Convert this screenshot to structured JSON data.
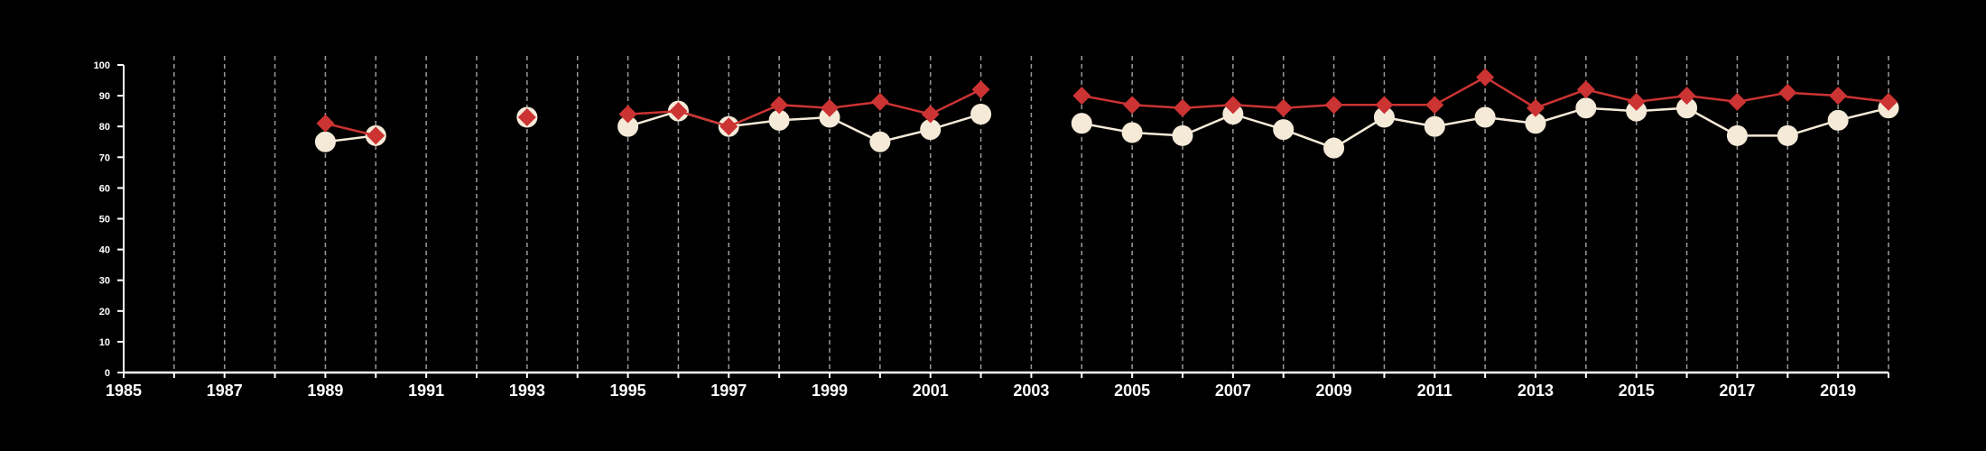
{
  "colors": {
    "background": "#000000",
    "axis": "#ffffff",
    "grid": "#9a9a9a",
    "series_white": "#f5ead8",
    "series_red": "#cc3333"
  },
  "chart_data": {
    "type": "line",
    "title": "",
    "xlabel": "",
    "ylabel": "",
    "xlim": [
      1985,
      2020
    ],
    "ylim": [
      0,
      100
    ],
    "grid": "vertical dashed at each year",
    "legend": "none",
    "x_ticks": [
      "1985",
      "1987",
      "1989",
      "1991",
      "1993",
      "1995",
      "1997",
      "1999",
      "2001",
      "2003",
      "2005",
      "2007",
      "2009",
      "2011",
      "2013",
      "2015",
      "2017",
      "2019"
    ],
    "y_ticks": [
      "0",
      "10",
      "20",
      "30",
      "40",
      "50",
      "60",
      "70",
      "80",
      "90",
      "100"
    ],
    "series": [
      {
        "marker": "circle",
        "color": "#f5ead8",
        "points": [
          [
            1989,
            75
          ],
          [
            1990,
            77
          ],
          null,
          [
            1993,
            83
          ],
          null,
          [
            1995,
            80
          ],
          [
            1996,
            85
          ],
          [
            1997,
            80
          ],
          [
            1998,
            82
          ],
          [
            1999,
            83
          ],
          [
            2000,
            75
          ],
          [
            2001,
            79
          ],
          [
            2002,
            84
          ],
          null,
          [
            2004,
            81
          ],
          [
            2005,
            78
          ],
          [
            2006,
            77
          ],
          [
            2007,
            84
          ],
          [
            2008,
            79
          ],
          [
            2009,
            73
          ],
          [
            2010,
            83
          ],
          [
            2011,
            80
          ],
          [
            2012,
            83
          ],
          [
            2013,
            81
          ],
          [
            2014,
            86
          ],
          [
            2015,
            85
          ],
          [
            2016,
            86
          ],
          [
            2017,
            77
          ],
          [
            2018,
            77
          ],
          [
            2019,
            82
          ],
          [
            2020,
            86
          ]
        ]
      },
      {
        "marker": "diamond",
        "color": "#cc3333",
        "points": [
          [
            1989,
            81
          ],
          [
            1990,
            77
          ],
          null,
          [
            1993,
            83
          ],
          null,
          [
            1995,
            84
          ],
          [
            1996,
            85
          ],
          [
            1997,
            80
          ],
          [
            1998,
            87
          ],
          [
            1999,
            86
          ],
          [
            2000,
            88
          ],
          [
            2001,
            84
          ],
          [
            2002,
            92
          ],
          null,
          [
            2004,
            90
          ],
          [
            2005,
            87
          ],
          [
            2006,
            86
          ],
          [
            2007,
            87
          ],
          [
            2008,
            86
          ],
          [
            2009,
            87
          ],
          [
            2010,
            87
          ],
          [
            2011,
            87
          ],
          [
            2012,
            96
          ],
          [
            2013,
            86
          ],
          [
            2014,
            92
          ],
          [
            2015,
            88
          ],
          [
            2016,
            90
          ],
          [
            2017,
            88
          ],
          [
            2018,
            91
          ],
          [
            2019,
            90
          ],
          [
            2020,
            88
          ]
        ]
      }
    ]
  }
}
